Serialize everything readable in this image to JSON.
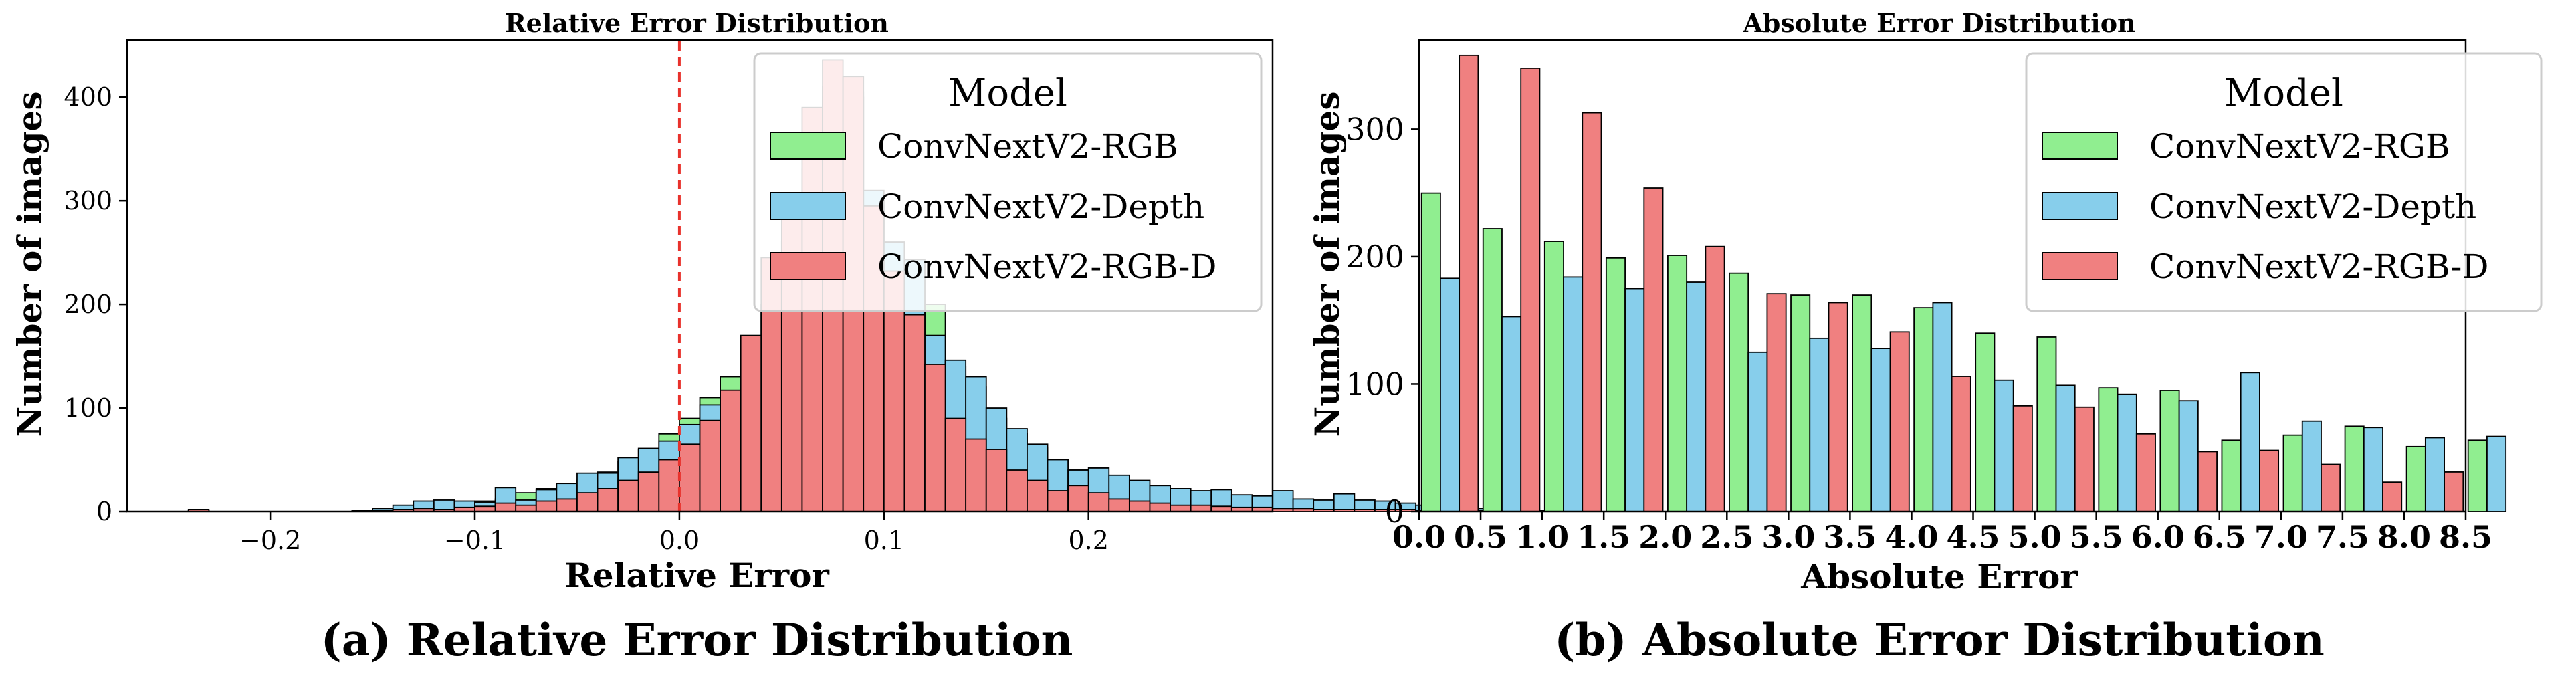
{
  "chart_data": [
    {
      "type": "histogram",
      "title": "Relative Error Distribution",
      "xlabel": "Relative Error",
      "ylabel": "Number of images",
      "xlim": [
        -0.27,
        0.29
      ],
      "ylim": [
        0,
        455
      ],
      "bin_start": -0.25,
      "bin_width": 0.01,
      "xticks": [
        "-0.2",
        "-0.1",
        "0.0",
        "0.1",
        "0.2"
      ],
      "xtick_values": [
        -0.2,
        -0.1,
        0.0,
        0.1,
        0.2
      ],
      "yticks": [
        "0",
        "100",
        "200",
        "300",
        "400"
      ],
      "ytick_values": [
        0,
        100,
        200,
        300,
        400
      ],
      "reference_line": 0.0,
      "legend": {
        "title": "Model",
        "position": "top-right"
      },
      "series": [
        {
          "name": "ConvNextV2-RGB",
          "color": "#90ee90",
          "values": [
            0,
            1,
            0,
            0,
            0,
            0,
            0,
            0,
            0,
            1,
            3,
            3,
            4,
            6,
            8,
            10,
            12,
            18,
            22,
            25,
            30,
            38,
            48,
            60,
            75,
            90,
            110,
            130,
            160,
            200,
            260,
            330,
            410,
            400,
            300,
            260,
            240,
            200,
            140,
            120,
            90,
            75,
            62,
            50,
            40,
            35,
            30,
            25,
            22,
            20,
            18,
            16,
            14,
            12,
            10,
            8,
            7,
            6,
            5,
            4,
            4,
            3,
            3,
            2,
            2,
            2,
            1,
            1,
            1,
            1
          ]
        },
        {
          "name": "ConvNextV2-Depth",
          "color": "#87ceeb",
          "values": [
            0,
            1,
            0,
            0,
            0,
            0,
            0,
            0,
            0,
            1,
            3,
            6,
            10,
            11,
            10,
            9,
            23,
            11,
            21,
            27,
            37,
            37,
            52,
            61,
            68,
            84,
            103,
            111,
            165,
            200,
            240,
            320,
            400,
            405,
            310,
            260,
            243,
            170,
            146,
            130,
            100,
            80,
            65,
            50,
            40,
            42,
            35,
            30,
            25,
            22,
            20,
            21,
            16,
            15,
            20,
            12,
            11,
            17,
            11,
            10,
            8,
            6,
            4,
            3,
            3,
            2,
            2,
            1,
            1,
            1
          ]
        },
        {
          "name": "ConvNextV2-RGB-D",
          "color": "#f08080",
          "values": [
            0,
            2,
            0,
            0,
            0,
            0,
            0,
            0,
            0,
            0,
            1,
            2,
            3,
            2,
            4,
            5,
            8,
            6,
            10,
            12,
            18,
            22,
            30,
            38,
            50,
            65,
            88,
            117,
            170,
            245,
            300,
            390,
            436,
            420,
            295,
            232,
            190,
            142,
            90,
            70,
            60,
            40,
            30,
            20,
            25,
            18,
            12,
            10,
            8,
            6,
            6,
            5,
            4,
            4,
            3,
            3,
            2,
            2,
            2,
            2,
            2,
            1,
            1,
            1,
            1,
            1,
            0,
            0,
            0,
            0
          ]
        }
      ]
    },
    {
      "type": "bar",
      "title": "Absolute Error Distribution",
      "xlabel": "Absolute Error",
      "ylabel": "Number of images",
      "xlim": [
        0.0,
        8.5
      ],
      "ylim": [
        0,
        370
      ],
      "bin_start": 0.0,
      "bin_width": 0.5,
      "xticks": [
        "0.0",
        "0.5",
        "1.0",
        "1.5",
        "2.0",
        "2.5",
        "3.0",
        "3.5",
        "4.0",
        "4.5",
        "5.0",
        "5.5",
        "6.0",
        "6.5",
        "7.0",
        "7.5",
        "8.0",
        "8.5"
      ],
      "xtick_values": [
        0.0,
        0.5,
        1.0,
        1.5,
        2.0,
        2.5,
        3.0,
        3.5,
        4.0,
        4.5,
        5.0,
        5.5,
        6.0,
        6.5,
        7.0,
        7.5,
        8.0,
        8.5
      ],
      "yticks": [
        "0",
        "100",
        "200",
        "300"
      ],
      "ytick_values": [
        0,
        100,
        200,
        300
      ],
      "legend": {
        "title": "Model",
        "position": "top-right"
      },
      "series": [
        {
          "name": "ConvNextV2-RGB",
          "color": "#90ee90",
          "values": [
            250,
            222,
            212,
            199,
            201,
            187,
            170,
            170,
            160,
            140,
            137,
            97,
            95,
            56,
            60,
            67,
            51,
            56
          ]
        },
        {
          "name": "ConvNextV2-Depth",
          "color": "#87ceeb",
          "values": [
            183,
            153,
            184,
            175,
            180,
            125,
            136,
            128,
            164,
            103,
            99,
            92,
            87,
            109,
            71,
            66,
            58,
            59
          ]
        },
        {
          "name": "ConvNextV2-RGB-D",
          "color": "#f08080",
          "values": [
            358,
            348,
            313,
            254,
            208,
            171,
            164,
            141,
            106,
            83,
            82,
            61,
            47,
            48,
            37,
            23,
            31,
            0
          ]
        }
      ]
    }
  ],
  "captions": {
    "a": "(a) Relative Error Distribution",
    "b": "(b) Absolute Error Distribution"
  }
}
